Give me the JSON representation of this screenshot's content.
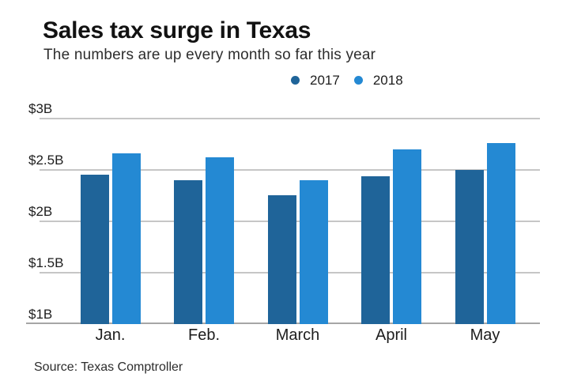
{
  "header": {
    "title": "Sales tax surge in Texas",
    "subtitle": "The numbers are up every month so far this year"
  },
  "source": "Source: Texas Comptroller",
  "colors": {
    "series_2017": "#1f6499",
    "series_2018": "#2489d3",
    "gridline": "#c6c6c6",
    "baseline": "#a6a6a6",
    "text": "#1d1d1d"
  },
  "chart_data": {
    "type": "bar",
    "title": "Sales tax surge in Texas",
    "subtitle": "The numbers are up every month so far this year",
    "categories": [
      "Jan.",
      "Feb.",
      "March",
      "April",
      "May"
    ],
    "series": [
      {
        "name": "2017",
        "color": "#1f6499",
        "values": [
          2.45,
          2.4,
          2.25,
          2.44,
          2.5
        ]
      },
      {
        "name": "2018",
        "color": "#2489d3",
        "values": [
          2.66,
          2.62,
          2.4,
          2.7,
          2.76
        ]
      }
    ],
    "xlabel": "",
    "ylabel": "",
    "units_hint": "$B",
    "ylim": [
      1.0,
      3.0
    ],
    "yticks": [
      {
        "label": "$3B",
        "value": 3.0
      },
      {
        "label": "$2.5B",
        "value": 2.5
      },
      {
        "label": "$2B",
        "value": 2.0
      },
      {
        "label": "$1.5B",
        "value": 1.5
      },
      {
        "label": "$1B",
        "value": 1.0
      }
    ],
    "grid": true,
    "legend_position": "top-center",
    "source": "Source: Texas Comptroller"
  }
}
